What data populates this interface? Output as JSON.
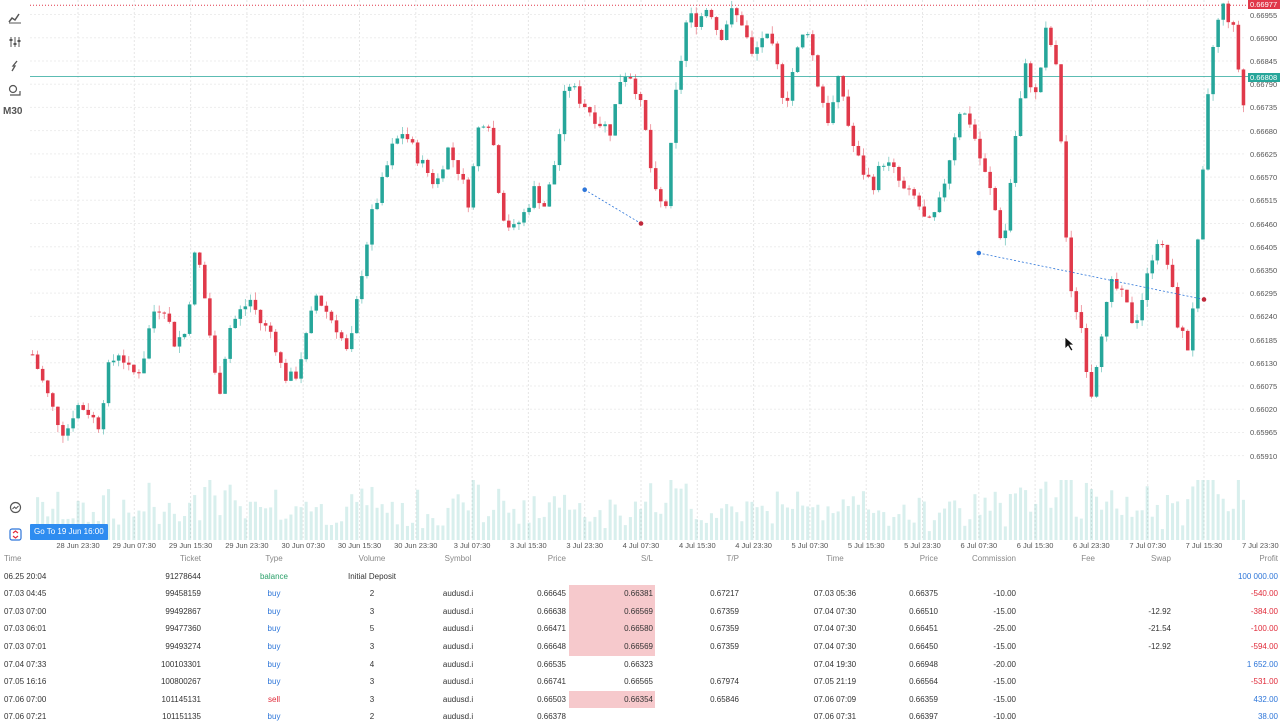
{
  "timeframe": "M30",
  "goto_label": "Go To 19 Jun 16:00",
  "price_badges": {
    "top": "0.66977",
    "current": "0.66808"
  },
  "colors": {
    "bull": "#26a69a",
    "bear": "#e0394a",
    "buy_marker": "#2e76d9",
    "sell_marker": "#c0283a",
    "sl_highlight": "#f6c9cc"
  },
  "toolbar_icons": [
    "chart-type-icon",
    "indicators-icon",
    "drawing-tools-icon",
    "objects-icon"
  ],
  "x_labels": [
    "28 Jun 23:30",
    "29 Jun 07:30",
    "29 Jun 15:30",
    "29 Jun 23:30",
    "30 Jun 07:30",
    "30 Jun 15:30",
    "30 Jun 23:30",
    "3 Jul 07:30",
    "3 Jul 15:30",
    "3 Jul 23:30",
    "4 Jul 07:30",
    "4 Jul 15:30",
    "4 Jul 23:30",
    "5 Jul 07:30",
    "5 Jul 15:30",
    "5 Jul 23:30",
    "6 Jul 07:30",
    "6 Jul 15:30",
    "6 Jul 23:30",
    "7 Jul 07:30",
    "7 Jul 15:30",
    "7 Jul 23:30"
  ],
  "y_labels": [
    "0.66955",
    "0.66900",
    "0.66845",
    "0.66790",
    "0.66735",
    "0.66680",
    "0.66625",
    "0.66570",
    "0.66515",
    "0.66460",
    "0.66405",
    "0.66350",
    "0.66295",
    "0.66240",
    "0.66185",
    "0.66130",
    "0.66075",
    "0.66020",
    "0.65965",
    "0.65910"
  ],
  "chart_data": {
    "type": "candlestick",
    "ylim": [
      0.65895,
      0.6698
    ],
    "x_labels_note": "30-minute bars",
    "close_path": [
      0.6615,
      0.6608,
      0.6601,
      0.6596,
      0.6603,
      0.6602,
      0.6598,
      0.6612,
      0.6616,
      0.661,
      0.6612,
      0.6625,
      0.6627,
      0.6618,
      0.662,
      0.6641,
      0.6625,
      0.6604,
      0.6621,
      0.6625,
      0.6628,
      0.6622,
      0.662,
      0.661,
      0.6609,
      0.6618,
      0.6629,
      0.6625,
      0.6621,
      0.6614,
      0.6632,
      0.6647,
      0.6655,
      0.6664,
      0.6668,
      0.6663,
      0.6659,
      0.6655,
      0.6664,
      0.6659,
      0.6651,
      0.6671,
      0.667,
      0.6649,
      0.6644,
      0.6648,
      0.6654,
      0.665,
      0.6662,
      0.668,
      0.6676,
      0.6673,
      0.667,
      0.6668,
      0.6682,
      0.6681,
      0.6671,
      0.6653,
      0.6649,
      0.6677,
      0.6695,
      0.6694,
      0.6698,
      0.669,
      0.6696,
      0.6694,
      0.6685,
      0.6691,
      0.6686,
      0.6674,
      0.6686,
      0.6693,
      0.6679,
      0.667,
      0.6681,
      0.6666,
      0.6659,
      0.6655,
      0.6661,
      0.6658,
      0.6653,
      0.6652,
      0.6645,
      0.6649,
      0.6661,
      0.6673,
      0.667,
      0.666,
      0.6652,
      0.664,
      0.6665,
      0.6683,
      0.6676,
      0.6693,
      0.668,
      0.663,
      0.6624,
      0.6605,
      0.6621,
      0.6632,
      0.6628,
      0.6622,
      0.6631,
      0.6643,
      0.6637,
      0.6622,
      0.6616,
      0.6646,
      0.6685,
      0.6698,
      0.6693,
      0.6674
    ],
    "trade_markers": [
      {
        "x": "3 Jul 23:30",
        "price": 0.6654,
        "side": "buy"
      },
      {
        "x": "4 Jul 07:30",
        "price": 0.6646,
        "side": "sell"
      },
      {
        "x": "6 Jul 07:30",
        "price": 0.6639,
        "side": "buy"
      },
      {
        "x": "7 Jul 15:30",
        "price": 0.6628,
        "side": "sell"
      }
    ]
  },
  "table": {
    "headers": {
      "time": "Time",
      "ticket": "Ticket",
      "type": "Type",
      "volume": "Volume",
      "symbol": "Symbol",
      "price": "Price",
      "sl": "S/L",
      "tp": "T/P",
      "time2": "Time",
      "price2": "Price",
      "commission": "Commission",
      "fee": "Fee",
      "swap": "Swap",
      "profit": "Profit"
    },
    "rows": [
      {
        "time": "06.25 20:04",
        "ticket": "91278644",
        "type": "balance",
        "volume": "Initial Deposit",
        "symbol": "",
        "price": "",
        "sl": "",
        "tp": "",
        "time2": "",
        "price2": "",
        "commission": "",
        "fee": "",
        "swap": "",
        "profit": "100 000.00",
        "sl_hl": false,
        "pcls": "pos",
        "tcls": "bal"
      },
      {
        "time": "07.03 04:45",
        "ticket": "99458159",
        "type": "buy",
        "volume": "2",
        "symbol": "audusd.i",
        "price": "0.66645",
        "sl": "0.66381",
        "tp": "0.67217",
        "time2": "07.03 05:36",
        "price2": "0.66375",
        "commission": "-10.00",
        "fee": "",
        "swap": "",
        "profit": "-540.00",
        "sl_hl": true,
        "pcls": "neg",
        "tcls": "buy"
      },
      {
        "time": "07.03 07:00",
        "ticket": "99492867",
        "type": "buy",
        "volume": "3",
        "symbol": "audusd.i",
        "price": "0.66638",
        "sl": "0.66569",
        "tp": "0.67359",
        "time2": "07.04 07:30",
        "price2": "0.66510",
        "commission": "-15.00",
        "fee": "",
        "swap": "-12.92",
        "profit": "-384.00",
        "sl_hl": true,
        "pcls": "neg",
        "tcls": "buy"
      },
      {
        "time": "07.03 06:01",
        "ticket": "99477360",
        "type": "buy",
        "volume": "5",
        "symbol": "audusd.i",
        "price": "0.66471",
        "sl": "0.66580",
        "tp": "0.67359",
        "time2": "07.04 07:30",
        "price2": "0.66451",
        "commission": "-25.00",
        "fee": "",
        "swap": "-21.54",
        "profit": "-100.00",
        "sl_hl": true,
        "pcls": "neg",
        "tcls": "buy"
      },
      {
        "time": "07.03 07:01",
        "ticket": "99493274",
        "type": "buy",
        "volume": "3",
        "symbol": "audusd.i",
        "price": "0.66648",
        "sl": "0.66569",
        "tp": "0.67359",
        "time2": "07.04 07:30",
        "price2": "0.66450",
        "commission": "-15.00",
        "fee": "",
        "swap": "-12.92",
        "profit": "-594.00",
        "sl_hl": true,
        "pcls": "neg",
        "tcls": "buy"
      },
      {
        "time": "07.04 07:33",
        "ticket": "100103301",
        "type": "buy",
        "volume": "4",
        "symbol": "audusd.i",
        "price": "0.66535",
        "sl": "0.66323",
        "tp": "",
        "time2": "07.04 19:30",
        "price2": "0.66948",
        "commission": "-20.00",
        "fee": "",
        "swap": "",
        "profit": "1 652.00",
        "sl_hl": false,
        "pcls": "pos",
        "tcls": "buy"
      },
      {
        "time": "07.05 16:16",
        "ticket": "100800267",
        "type": "buy",
        "volume": "3",
        "symbol": "audusd.i",
        "price": "0.66741",
        "sl": "0.66565",
        "tp": "0.67974",
        "time2": "07.05 21:19",
        "price2": "0.66564",
        "commission": "-15.00",
        "fee": "",
        "swap": "",
        "profit": "-531.00",
        "sl_hl": false,
        "pcls": "neg",
        "tcls": "buy"
      },
      {
        "time": "07.06 07:00",
        "ticket": "101145131",
        "type": "sell",
        "volume": "3",
        "symbol": "audusd.i",
        "price": "0.66503",
        "sl": "0.66354",
        "tp": "0.65846",
        "time2": "07.06 07:09",
        "price2": "0.66359",
        "commission": "-15.00",
        "fee": "",
        "swap": "",
        "profit": "432.00",
        "sl_hl": true,
        "pcls": "pos",
        "tcls": "sell"
      },
      {
        "time": "07.06 07:21",
        "ticket": "101151135",
        "type": "buy",
        "volume": "2",
        "symbol": "audusd.i",
        "price": "0.66378",
        "sl": "",
        "tp": "",
        "time2": "07.06 07:31",
        "price2": "0.66397",
        "commission": "-10.00",
        "fee": "",
        "swap": "",
        "profit": "38.00",
        "sl_hl": false,
        "pcls": "pos",
        "tcls": "buy"
      }
    ]
  }
}
